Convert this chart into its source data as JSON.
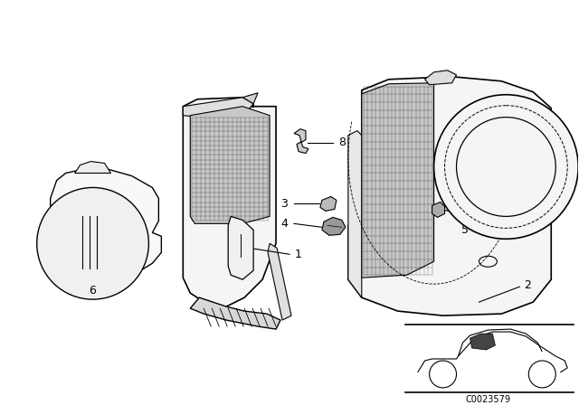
{
  "background_color": "#ffffff",
  "line_color": "#000000",
  "diagram_code": "C0023579",
  "fig_width": 6.4,
  "fig_height": 4.48,
  "dpi": 100
}
